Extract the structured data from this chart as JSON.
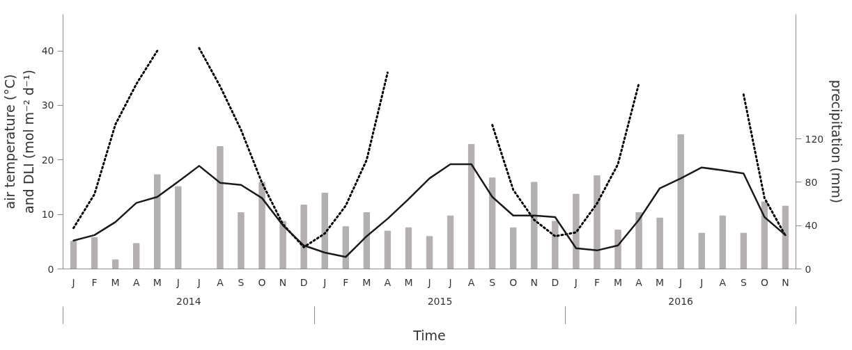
{
  "chart_data": {
    "type": "bar",
    "xlabel": "Time",
    "ylabel": "air temperature (°C)\nand DLI (mol m⁻² d⁻¹)",
    "y2label": "precipitation (mm)",
    "categories": [
      "J",
      "F",
      "M",
      "A",
      "M",
      "J",
      "J",
      "A",
      "S",
      "O",
      "N",
      "D",
      "J",
      "F",
      "M",
      "A",
      "M",
      "J",
      "J",
      "A",
      "S",
      "O",
      "N",
      "D",
      "J",
      "F",
      "M",
      "A",
      "M",
      "J",
      "J",
      "A",
      "S",
      "O",
      "N"
    ],
    "annotations": [
      "2014",
      "2015",
      "2016"
    ],
    "series": [
      {
        "axis": "y2",
        "color": "#b5b0b0",
        "values": [
          25.5,
          29,
          8.5,
          23.5,
          87,
          76,
          null,
          113,
          52,
          80,
          44,
          59,
          70,
          39,
          52,
          35,
          38,
          30,
          49,
          115,
          84,
          38,
          80,
          44,
          69,
          86,
          36,
          52,
          47,
          124,
          33,
          49,
          33,
          62,
          58
        ]
      },
      {
        "type": "line",
        "color": "#000000",
        "line_style": "dotted",
        "values": [
          7.5,
          13.7,
          26.5,
          33.9,
          40,
          null,
          40.5,
          33.5,
          25.5,
          15.8,
          8.2,
          4,
          6.5,
          11.6,
          20,
          36,
          null,
          null,
          null,
          null,
          26.4,
          14.5,
          9,
          6,
          6.7,
          12,
          19.2,
          34,
          null,
          null,
          null,
          null,
          32,
          13,
          6.1
        ]
      },
      {
        "type": "line",
        "color": "#1a1a1a",
        "line_style": "solid",
        "values": [
          5.2,
          6.2,
          8.6,
          12.1,
          13.2,
          16,
          18.9,
          15.8,
          15.4,
          13,
          8,
          4.3,
          3,
          2.2,
          6,
          9.2,
          12.8,
          16.6,
          19.2,
          19.2,
          13.2,
          9.8,
          9.8,
          9.5,
          3.8,
          3.4,
          4.3,
          9,
          14.8,
          16.6,
          18.6,
          18.1,
          17.5,
          9.5,
          6.2
        ]
      }
    ],
    "ylim": [
      0,
      46.7
    ],
    "yticks": [
      0,
      10,
      20,
      30,
      40
    ],
    "y2lim": [
      0,
      235
    ],
    "y2ticks": [
      0,
      40,
      80,
      120
    ],
    "grid": false
  }
}
